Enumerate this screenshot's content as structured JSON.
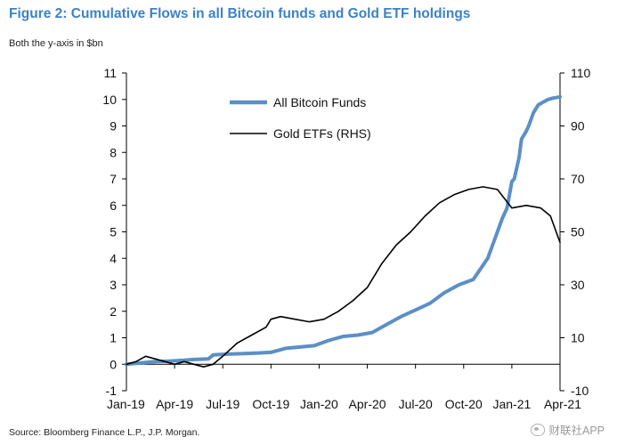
{
  "header": {
    "title": "Figure 2: Cumulative Flows in all Bitcoin funds and Gold ETF holdings",
    "subtitle": "Both the y-axis in $bn"
  },
  "footer": {
    "source": "Source: Bloomberg Finance L.P., J.P. Morgan.",
    "watermark": "财联社APP"
  },
  "chart_data": {
    "type": "line",
    "x_ticks": [
      "Jan-19",
      "Apr-19",
      "Jul-19",
      "Oct-19",
      "Jan-20",
      "Apr-20",
      "Jul-20",
      "Oct-20",
      "Jan-21",
      "Apr-21"
    ],
    "y_left": {
      "ticks": [
        "-1",
        "0",
        "1",
        "2",
        "3",
        "4",
        "5",
        "6",
        "7",
        "8",
        "9",
        "10",
        "11"
      ],
      "lim": [
        -1,
        11
      ]
    },
    "y_right": {
      "ticks": [
        "-10",
        "10",
        "30",
        "50",
        "70",
        "90",
        "110"
      ],
      "lim": [
        -10,
        110
      ]
    },
    "grid": false,
    "legend_position": "top-left",
    "series": [
      {
        "name": "All Bitcoin Funds",
        "axis": "left",
        "color": "#5b8fc7",
        "x": [
          0,
          0.3,
          0.6,
          0.9,
          1.2,
          1.4,
          1.7,
          1.8,
          2.1,
          2.4,
          2.7,
          3.0,
          3.3,
          3.6,
          3.9,
          4.2,
          4.5,
          4.8,
          5.1,
          5.4,
          5.7,
          6.0,
          6.3,
          6.6,
          6.9,
          7.2,
          7.5,
          7.7,
          7.8,
          7.9,
          8.0,
          8.05,
          8.15,
          8.2,
          8.3,
          8.35,
          8.45,
          8.55,
          8.65,
          8.75,
          8.85,
          9.0
        ],
        "values": [
          0,
          0.05,
          0.1,
          0.12,
          0.15,
          0.18,
          0.2,
          0.35,
          0.38,
          0.4,
          0.42,
          0.45,
          0.6,
          0.65,
          0.7,
          0.9,
          1.05,
          1.1,
          1.2,
          1.5,
          1.8,
          2.05,
          2.3,
          2.7,
          3.0,
          3.2,
          4.0,
          5.0,
          5.5,
          5.9,
          6.9,
          7.0,
          7.8,
          8.5,
          8.8,
          9.0,
          9.5,
          9.8,
          9.9,
          10.0,
          10.05,
          10.1
        ]
      },
      {
        "name": "Gold ETFs (RHS)",
        "axis": "right",
        "color": "#000000",
        "x": [
          0,
          0.2,
          0.4,
          0.6,
          0.8,
          1.0,
          1.2,
          1.4,
          1.6,
          1.8,
          2.0,
          2.3,
          2.6,
          2.9,
          3.0,
          3.2,
          3.5,
          3.8,
          4.1,
          4.4,
          4.7,
          5.0,
          5.3,
          5.6,
          5.9,
          6.2,
          6.5,
          6.8,
          7.1,
          7.4,
          7.7,
          8.0,
          8.3,
          8.6,
          8.8,
          9.0
        ],
        "values": [
          0,
          1,
          3,
          2,
          1,
          0,
          1,
          0,
          -1,
          0,
          3,
          8,
          11,
          14,
          17,
          18,
          17,
          16,
          17,
          20,
          24,
          29,
          38,
          45,
          50,
          56,
          61,
          64,
          66,
          67,
          66,
          59,
          60,
          59,
          56,
          46
        ]
      }
    ]
  }
}
